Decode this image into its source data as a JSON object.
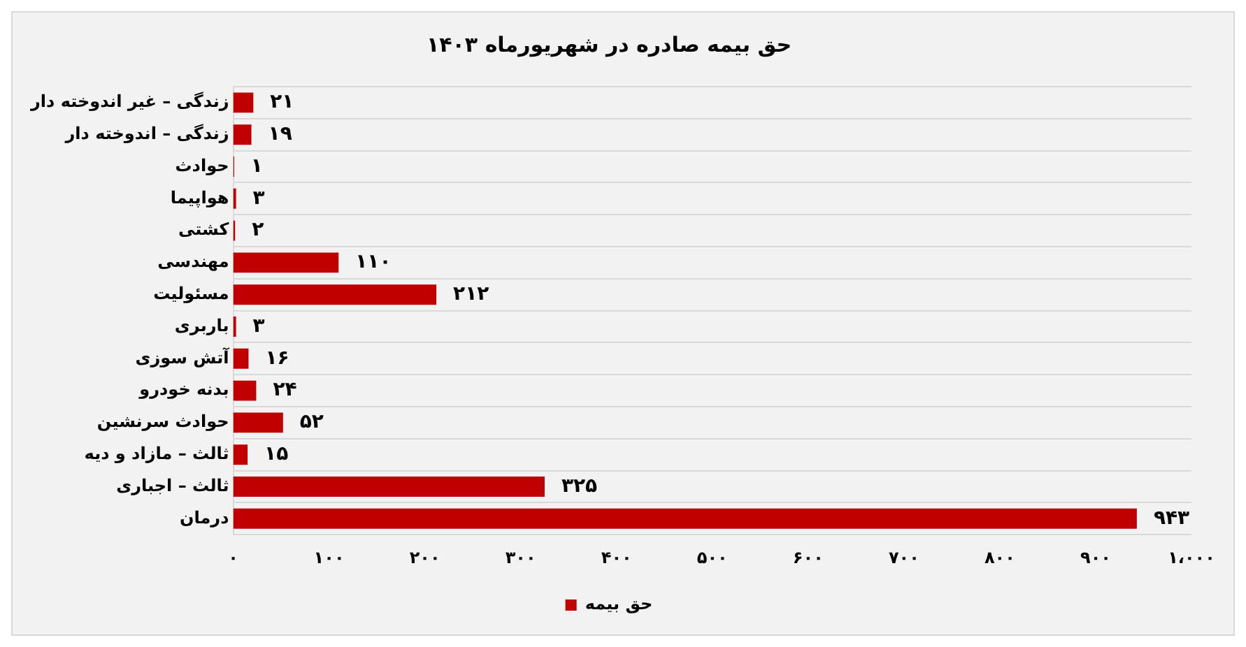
{
  "chart_data": {
    "type": "bar",
    "orientation": "horizontal",
    "title": "حق بیمه صادره در شهریورماه ۱۴۰۳",
    "categories": [
      "زندگی – غیر اندوخته دار",
      "زندگی – اندوخته دار",
      "حوادث",
      "هواپیما",
      "کشتی",
      "مهندسی",
      "مسئولیت",
      "باربری",
      "آتش سوزی",
      "بدنه خودرو",
      "حوادث سرنشین",
      "ثالث – مازاد و دیه",
      "ثالث – اجباری",
      "درمان"
    ],
    "series": [
      {
        "name": "حق بیمه",
        "color": "#c00000",
        "values": [
          21,
          19,
          1,
          3,
          2,
          110,
          212,
          3,
          16,
          24,
          52,
          15,
          325,
          943
        ],
        "value_labels": [
          "۲۱",
          "۱۹",
          "۱",
          "۳",
          "۲",
          "۱۱۰",
          "۲۱۲",
          "۳",
          "۱۶",
          "۲۴",
          "۵۲",
          "۱۵",
          "۳۲۵",
          "۹۴۳"
        ]
      }
    ],
    "xlim": [
      0,
      1000
    ],
    "xticks": [
      {
        "value": 0,
        "label": "۰"
      },
      {
        "value": 100,
        "label": "۱۰۰"
      },
      {
        "value": 200,
        "label": "۲۰۰"
      },
      {
        "value": 300,
        "label": "۳۰۰"
      },
      {
        "value": 400,
        "label": "۴۰۰"
      },
      {
        "value": 500,
        "label": "۵۰۰"
      },
      {
        "value": 600,
        "label": "۶۰۰"
      },
      {
        "value": 700,
        "label": "۷۰۰"
      },
      {
        "value": 800,
        "label": "۸۰۰"
      },
      {
        "value": 900,
        "label": "۹۰۰"
      },
      {
        "value": 1000,
        "label": "۱،۰۰۰"
      }
    ],
    "grid": "y",
    "legend": "bottom"
  }
}
